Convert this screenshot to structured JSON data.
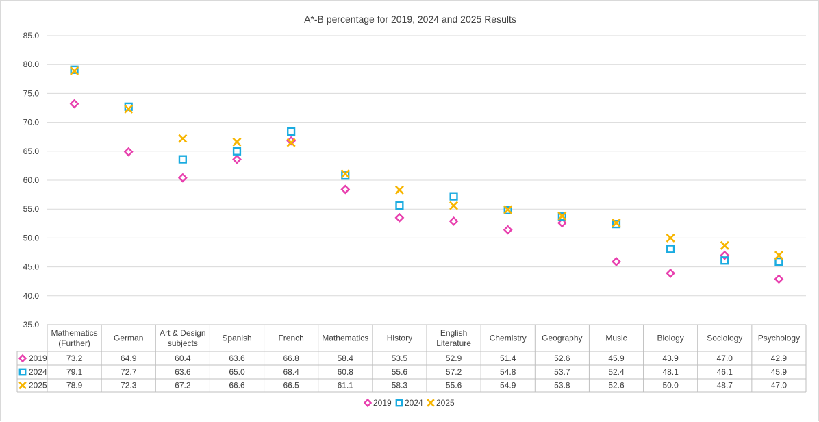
{
  "chart_data": {
    "type": "scatter",
    "title": "A*-B percentage for 2019, 2024 and 2025 Results",
    "ylim": [
      35.0,
      85.0
    ],
    "yticks": [
      "85.0",
      "80.0",
      "75.0",
      "70.0",
      "65.0",
      "60.0",
      "55.0",
      "50.0",
      "45.0",
      "40.0",
      "35.0"
    ],
    "grid": true,
    "legend_position": "bottom",
    "data_table": true,
    "categories": [
      [
        "Mathematics",
        "(Further)"
      ],
      [
        "German"
      ],
      [
        "Art & Design",
        "subjects"
      ],
      [
        "Spanish"
      ],
      [
        "French"
      ],
      [
        "Mathematics"
      ],
      [
        "History"
      ],
      [
        "English",
        "Literature"
      ],
      [
        "Chemistry"
      ],
      [
        "Geography"
      ],
      [
        "Music"
      ],
      [
        "Biology"
      ],
      [
        "Sociology"
      ],
      [
        "Psychology"
      ]
    ],
    "series": [
      {
        "name": "2019",
        "marker": "diamond",
        "color": "#e83fae",
        "values": [
          73.2,
          64.9,
          60.4,
          63.6,
          66.8,
          58.4,
          53.5,
          52.9,
          51.4,
          52.6,
          45.9,
          43.9,
          47.0,
          42.9
        ],
        "labels": [
          "73.2",
          "64.9",
          "60.4",
          "63.6",
          "66.8",
          "58.4",
          "53.5",
          "52.9",
          "51.4",
          "52.6",
          "45.9",
          "43.9",
          "47.0",
          "42.9"
        ]
      },
      {
        "name": "2024",
        "marker": "square",
        "color": "#1aabe0",
        "values": [
          79.1,
          72.7,
          63.6,
          65.0,
          68.4,
          60.8,
          55.6,
          57.2,
          54.8,
          53.7,
          52.4,
          48.1,
          46.1,
          45.9
        ],
        "labels": [
          "79.1",
          "72.7",
          "63.6",
          "65.0",
          "68.4",
          "60.8",
          "55.6",
          "57.2",
          "54.8",
          "53.7",
          "52.4",
          "48.1",
          "46.1",
          "45.9"
        ]
      },
      {
        "name": "2025",
        "marker": "x",
        "color": "#f7b500",
        "values": [
          78.9,
          72.3,
          67.2,
          66.6,
          66.5,
          61.1,
          58.3,
          55.6,
          54.9,
          53.8,
          52.6,
          50.0,
          48.7,
          47.0
        ],
        "labels": [
          "78.9",
          "72.3",
          "67.2",
          "66.6",
          "66.5",
          "61.1",
          "58.3",
          "55.6",
          "54.9",
          "53.8",
          "52.6",
          "50.0",
          "48.7",
          "47.0"
        ]
      }
    ]
  }
}
